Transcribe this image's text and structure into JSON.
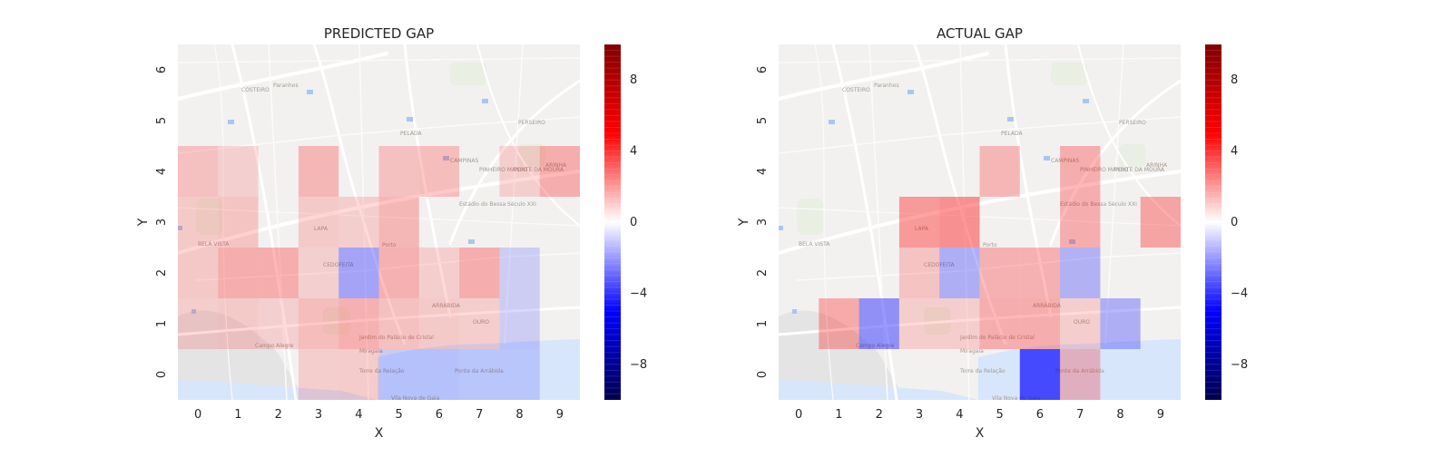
{
  "colors": {
    "positive": "#ff0000",
    "negative": "#0000ff",
    "neutral": "#ffffff",
    "text": "#262626",
    "water": "#d7e6fb",
    "map_background": "#f2f1f0"
  },
  "map_labels": [
    "COSTEIRO",
    "Paranhos",
    "PELADA",
    "PERSEIRO",
    "CAMPINAS",
    "PINHEIRO MANSO",
    "PONTE DA MOURA",
    "ARINHA",
    "Estádio do Bessa Século XXI",
    "LAPA",
    "BELA VISTA",
    "CEDOFEITA",
    "Porto",
    "ARRÁBIDA",
    "Jardim do Palácio de Cristal",
    "OURO",
    "Miragaia",
    "Campo Alegre",
    "Torre da Relação",
    "Ponte da Arrábida",
    "Vila Nova de Gaia"
  ],
  "chart_data": [
    {
      "type": "heatmap",
      "title": "PREDICTED GAP",
      "xlabel": "X",
      "ylabel": "Y",
      "x_ticks": [
        "0",
        "1",
        "2",
        "3",
        "4",
        "5",
        "6",
        "7",
        "8",
        "9"
      ],
      "y_ticks": [
        "0",
        "1",
        "2",
        "3",
        "4",
        "5",
        "6"
      ],
      "grid": false,
      "background": "street map",
      "colorbar": {
        "ticks": [
          -8,
          -4,
          0,
          4,
          8
        ],
        "range": [
          -10,
          10
        ],
        "colormap": "seismic"
      },
      "rows_from_y6_to_y0": [
        [
          0,
          0,
          0,
          0,
          0,
          0,
          0,
          0,
          0,
          0
        ],
        [
          0,
          0,
          0,
          0,
          0,
          0,
          0,
          0,
          0,
          0
        ],
        [
          1,
          0.2,
          0,
          1.5,
          0,
          1,
          1.2,
          0,
          0.3,
          2
        ],
        [
          0.5,
          0.8,
          0,
          0.5,
          0.3,
          1.5,
          0,
          0,
          0,
          0
        ],
        [
          0.6,
          2,
          2,
          0.2,
          -2.5,
          1.8,
          0.3,
          2,
          -0.4,
          0
        ],
        [
          0.3,
          0.5,
          0.2,
          1.2,
          1.8,
          1,
          0.5,
          0.3,
          -0.4,
          0
        ],
        [
          0,
          0,
          0,
          0.3,
          0.4,
          -0.5,
          -0.5,
          -0.2,
          -0.2,
          0
        ]
      ]
    },
    {
      "type": "heatmap",
      "title": "ACTUAL GAP",
      "xlabel": "X",
      "ylabel": "Y",
      "x_ticks": [
        "0",
        "1",
        "2",
        "3",
        "4",
        "5",
        "6",
        "7",
        "8",
        "9"
      ],
      "y_ticks": [
        "0",
        "1",
        "2",
        "3",
        "4",
        "5",
        "6"
      ],
      "grid": false,
      "background": "street map",
      "colorbar": {
        "ticks": [
          -8,
          -4,
          0,
          4,
          8
        ],
        "range": [
          -10,
          10
        ],
        "colormap": "seismic"
      },
      "rows_from_y6_to_y0": [
        [
          0,
          0,
          0,
          0,
          0,
          0,
          0,
          0,
          0,
          0
        ],
        [
          0,
          0,
          0,
          0,
          0,
          0,
          0,
          0,
          0,
          0
        ],
        [
          0,
          0,
          0,
          0,
          0,
          1.5,
          0,
          2,
          0,
          0
        ],
        [
          0,
          0,
          0,
          3,
          3.5,
          0,
          0,
          2,
          0,
          2.5
        ],
        [
          0,
          0,
          0,
          0.8,
          -2,
          1.8,
          1.8,
          -1.8,
          0,
          0
        ],
        [
          0,
          2.2,
          -3.5,
          0.3,
          0.3,
          2,
          2,
          0.3,
          -2,
          0
        ],
        [
          0,
          0,
          0,
          0,
          0,
          0,
          -7,
          1.5,
          0,
          0
        ]
      ]
    }
  ]
}
